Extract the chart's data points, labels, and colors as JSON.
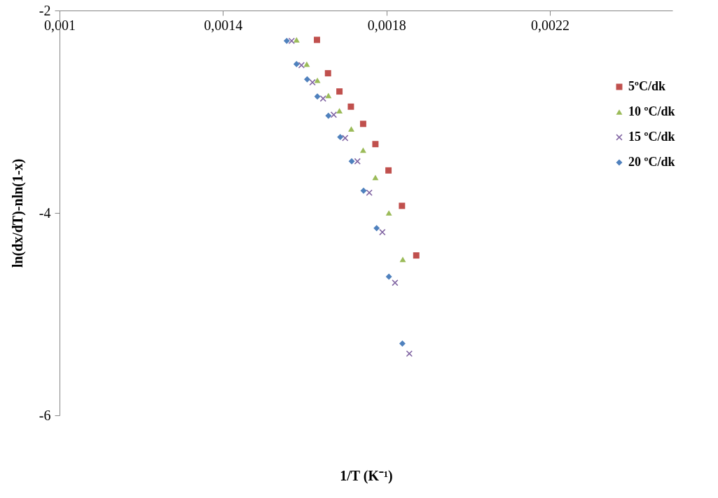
{
  "chart_data": {
    "type": "scatter",
    "xlabel": "1/T (K⁻¹)",
    "ylabel": "ln(dx/dT)-nln(1-x)",
    "xlim": [
      0.001,
      0.0025
    ],
    "xticks": [
      {
        "value": 0.001,
        "label": "0,001"
      },
      {
        "value": 0.0014,
        "label": "0,0014"
      },
      {
        "value": 0.0018,
        "label": "0,0018"
      },
      {
        "value": 0.0022,
        "label": "0,0022"
      }
    ],
    "ylim": [
      -6,
      -2
    ],
    "yticks": [
      -2,
      -4,
      -6
    ],
    "grid": false,
    "legend": "right",
    "series": [
      {
        "name": "5ºC/dk",
        "color": "#c0504d",
        "marker": "square",
        "x": [
          0.00163,
          0.001657,
          0.001685,
          0.001713,
          0.001743,
          0.001773,
          0.001805,
          0.001838,
          0.001873
        ],
        "values": [
          -2.29,
          -2.62,
          -2.8,
          -2.95,
          -3.12,
          -3.32,
          -3.58,
          -3.93,
          -4.42
        ]
      },
      {
        "name": "10 ºC/dk",
        "color": "#9bbb59",
        "marker": "triangle",
        "x": [
          0.00158,
          0.001605,
          0.001631,
          0.001658,
          0.001685,
          0.001714,
          0.001743,
          0.001773,
          0.001806,
          0.00184
        ],
        "values": [
          -2.29,
          -2.53,
          -2.69,
          -2.84,
          -2.99,
          -3.17,
          -3.38,
          -3.65,
          -4.0,
          -4.46
        ]
      },
      {
        "name": "15 ºC/dk",
        "color": "#8064a2",
        "marker": "cross",
        "x": [
          0.001568,
          0.001592,
          0.001619,
          0.001645,
          0.001671,
          0.001699,
          0.001729,
          0.001758,
          0.00179,
          0.001821,
          0.001856
        ],
        "values": [
          -2.3,
          -2.54,
          -2.71,
          -2.87,
          -3.03,
          -3.26,
          -3.49,
          -3.8,
          -4.19,
          -4.69,
          -5.39
        ]
      },
      {
        "name": "20 ºC/dk",
        "color": "#4f81bd",
        "marker": "diamond",
        "x": [
          0.001556,
          0.00158,
          0.001606,
          0.001631,
          0.001658,
          0.001687,
          0.001715,
          0.001744,
          0.001776,
          0.001806,
          0.001839
        ],
        "values": [
          -2.3,
          -2.53,
          -2.68,
          -2.85,
          -3.04,
          -3.25,
          -3.49,
          -3.78,
          -4.15,
          -4.63,
          -5.29
        ]
      }
    ]
  }
}
